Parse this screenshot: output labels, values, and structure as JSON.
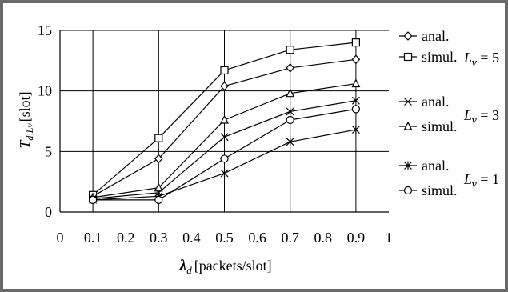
{
  "chart_data": {
    "type": "line",
    "xlabel_symbol": "λ",
    "xlabel_sub": "d",
    "xlabel_unit": "[packets/slot]",
    "ylabel_symbol": "T",
    "ylabel_sub": "d|Lν",
    "ylabel_unit": "[slot]",
    "xlim": [
      0,
      1
    ],
    "ylim": [
      0,
      15
    ],
    "x_ticks": [
      "0",
      "0.1",
      "0.2",
      "0.3",
      "0.4",
      "0.5",
      "0.6",
      "0.7",
      "0.8",
      "0.9",
      "1"
    ],
    "y_ticks": [
      "0",
      "5",
      "10",
      "15"
    ],
    "grid": "horizontal and vertical",
    "legend_position": "right",
    "x": [
      0.1,
      0.3,
      0.5,
      0.7,
      0.9
    ],
    "series": [
      {
        "name": "anal.",
        "group": "Lν = 5",
        "marker": "diamond",
        "values": [
          1.3,
          4.4,
          10.4,
          11.9,
          12.6
        ]
      },
      {
        "name": "simul.",
        "group": "Lν = 5",
        "marker": "square",
        "values": [
          1.4,
          6.1,
          11.7,
          13.4,
          14.0
        ]
      },
      {
        "name": "anal.",
        "group": "Lν = 3",
        "marker": "x",
        "values": [
          1.1,
          1.6,
          6.2,
          8.3,
          9.2
        ]
      },
      {
        "name": "simul.",
        "group": "Lν = 3",
        "marker": "triangle",
        "values": [
          1.2,
          2.0,
          7.6,
          9.8,
          10.6
        ]
      },
      {
        "name": "anal.",
        "group": "Lν = 1",
        "marker": "star",
        "values": [
          1.0,
          1.3,
          3.2,
          5.8,
          6.8
        ]
      },
      {
        "name": "simul.",
        "group": "Lν = 1",
        "marker": "circle",
        "values": [
          1.0,
          1.0,
          4.4,
          7.6,
          8.5
        ]
      }
    ],
    "legend_groups": [
      {
        "label_base": "L",
        "label_sub": "ν",
        "label_rest": " = 5"
      },
      {
        "label_base": "L",
        "label_sub": "ν",
        "label_rest": " = 3"
      },
      {
        "label_base": "L",
        "label_sub": "ν",
        "label_rest": " = 1"
      }
    ]
  }
}
